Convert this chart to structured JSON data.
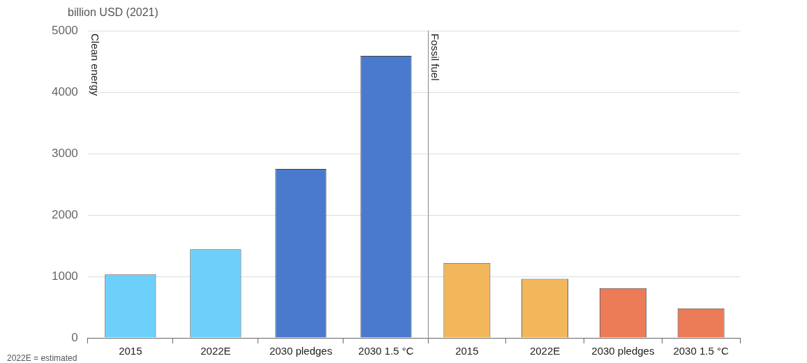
{
  "chart_data": [
    {
      "type": "bar",
      "ylabel": "billion USD (2021)",
      "categories": [
        "2015",
        "2022E",
        "2030 pledges",
        "2030 1.5 °C"
      ],
      "values": [
        1030,
        1440,
        2750,
        4590
      ],
      "colors": [
        "#6dd0fb",
        "#6dd0fb",
        "#4a7acd",
        "#4a7acd"
      ],
      "ylim": [
        0,
        5000
      ],
      "yticks": [
        0,
        1000,
        2000,
        3000,
        4000,
        5000
      ],
      "grid": "y",
      "annotations": [
        "Clean energy",
        "2022E = estimated"
      ]
    },
    {
      "type": "bar",
      "categories": [
        "2015",
        "2022E",
        "2030 pledges",
        "2030 1.5 °C"
      ],
      "values": [
        1220,
        960,
        810,
        480
      ],
      "colors": [
        "#f2b75b",
        "#f2b75b",
        "#ec7b57",
        "#ec7b57"
      ],
      "ylim": [
        0,
        5000
      ],
      "yticks": [
        0,
        1000,
        2000,
        3000,
        4000,
        5000
      ],
      "grid": "y",
      "tick_labels": "x",
      "annotations": [
        "Fossil fuel"
      ]
    }
  ]
}
